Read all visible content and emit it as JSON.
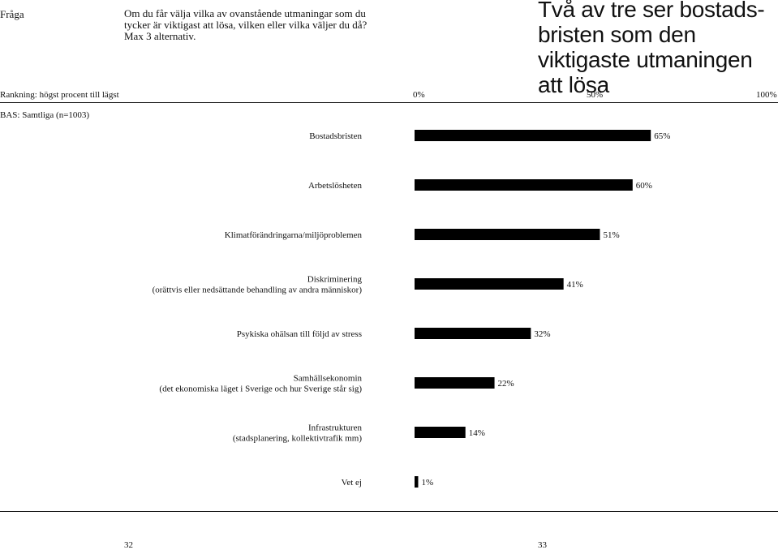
{
  "header": {
    "fraga_label": "Fråga",
    "question": "Om du får välja vilka av ovanstående utmaningar som du tycker är viktigast att lösa, vilken eller vilka väljer du då? Max 3 alternativ.",
    "headline": "Två av tre ser bostads-bristen som den viktigaste utmaningen att lösa"
  },
  "ranking_label": "Rankning: högst procent till lägst",
  "base_label": "BAS: Samtliga (n=1003)",
  "footer": {
    "page_left": "32",
    "page_right": "33"
  },
  "chart_data": {
    "type": "bar",
    "orientation": "horizontal",
    "categories": [
      [
        "Bostadsbristen"
      ],
      [
        "Arbetslösheten"
      ],
      [
        "Klimatförändringarna/miljöproblemen"
      ],
      [
        "Diskriminering",
        "(orättvis eller nedsättande behandling av andra människor)"
      ],
      [
        "Psykiska ohälsan till följd av stress"
      ],
      [
        "Samhällsekonomin",
        "(det ekonomiska läget i Sverige och hur Sverige står sig)"
      ],
      [
        "Infrastrukturen",
        "(stadsplanering, kollektivtrafik mm)"
      ],
      [
        "Vet ej"
      ]
    ],
    "values": [
      65,
      60,
      51,
      41,
      32,
      22,
      14,
      1
    ],
    "value_labels": [
      "65%",
      "60%",
      "51%",
      "41%",
      "32%",
      "22%",
      "14%",
      "1%"
    ],
    "xlim": [
      0,
      100
    ],
    "tick_labels": [
      "0%",
      "50%",
      "100%"
    ],
    "tick_values": [
      0,
      50,
      100
    ],
    "bar_color": "#000000"
  }
}
